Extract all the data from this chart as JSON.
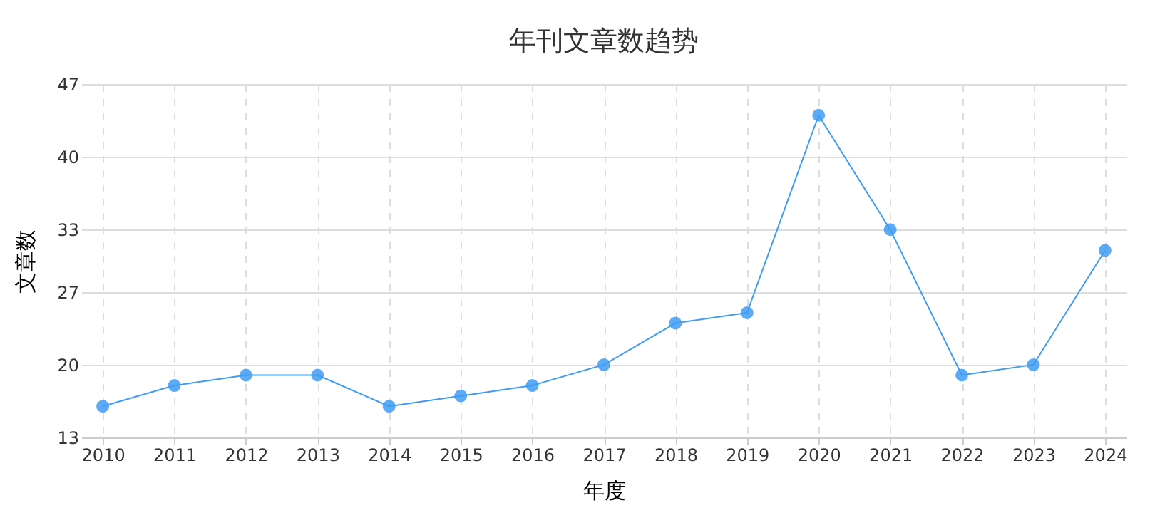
{
  "chart_data": {
    "type": "line",
    "title": "年刊文章数趋势",
    "xlabel": "年度",
    "ylabel": "文章数",
    "categories": [
      "2010",
      "2011",
      "2012",
      "2013",
      "2014",
      "2015",
      "2016",
      "2017",
      "2018",
      "2019",
      "2020",
      "2021",
      "2022",
      "2023",
      "2024"
    ],
    "series": [
      {
        "color": "#3f9cf2",
        "values": [
          16,
          18,
          19,
          19,
          16,
          17,
          18,
          20,
          24,
          25,
          44,
          33,
          19,
          20,
          31
        ]
      }
    ],
    "ylim": [
      13,
      47
    ],
    "yticks": [
      13,
      20,
      27,
      33,
      40,
      47
    ],
    "grid": true,
    "marker": "circle",
    "line_style": "solid"
  }
}
